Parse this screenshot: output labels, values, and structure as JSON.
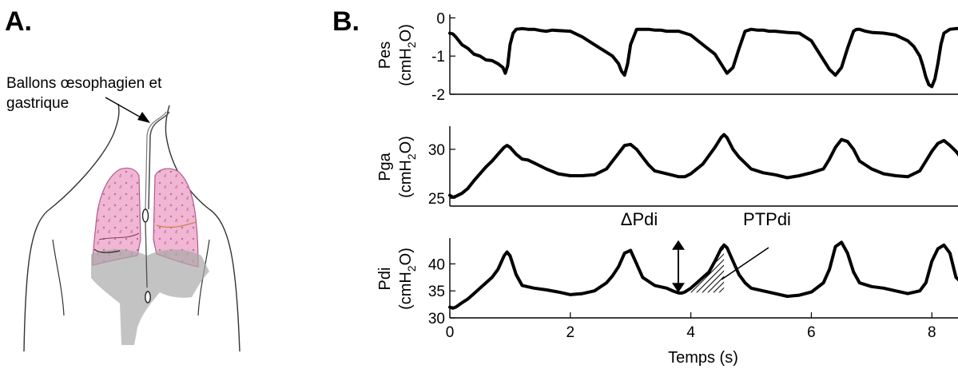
{
  "panels": {
    "a_label": "A.",
    "b_label": "B."
  },
  "illustration": {
    "balloon_label_line1": "Ballons œsophagien et",
    "balloon_label_line2": "gastrique",
    "colors": {
      "lung_fill": "#f0b6d4",
      "lung_stroke": "#b25a8a",
      "diaphragm": "#a9a9a9"
    }
  },
  "chart_data": [
    {
      "type": "line",
      "name": "Pes",
      "ylabel_main": "Pes",
      "ylabel_unit": "(cmH",
      "ylabel_sub": "2",
      "ylabel_tail": "O)",
      "yticks": [
        0,
        -1,
        -2
      ],
      "ylim": [
        -2,
        0.05
      ],
      "xlim": [
        0,
        8.5
      ],
      "x": [
        0.0,
        0.05,
        0.1,
        0.2,
        0.3,
        0.4,
        0.5,
        0.6,
        0.7,
        0.8,
        0.88,
        0.92,
        0.96,
        1.0,
        1.05,
        1.1,
        1.2,
        1.3,
        1.4,
        1.5,
        1.6,
        1.7,
        1.8,
        2.0,
        2.2,
        2.4,
        2.6,
        2.7,
        2.8,
        2.85,
        2.9,
        2.95,
        3.0,
        3.1,
        3.2,
        3.3,
        3.4,
        3.5,
        3.6,
        3.8,
        4.0,
        4.2,
        4.4,
        4.5,
        4.6,
        4.7,
        4.8,
        4.9,
        5.0,
        5.1,
        5.2,
        5.3,
        5.4,
        5.6,
        5.8,
        6.0,
        6.1,
        6.2,
        6.3,
        6.4,
        6.5,
        6.6,
        6.7,
        6.75,
        6.8,
        6.9,
        7.0,
        7.2,
        7.4,
        7.6,
        7.7,
        7.8,
        7.85,
        7.9,
        7.95,
        8.0,
        8.05,
        8.1,
        8.15,
        8.2,
        8.3,
        8.4,
        8.5
      ],
      "y": [
        -0.4,
        -0.42,
        -0.5,
        -0.7,
        -0.8,
        -0.95,
        -1.0,
        -1.1,
        -1.12,
        -1.2,
        -1.3,
        -1.45,
        -1.25,
        -0.7,
        -0.4,
        -0.3,
        -0.28,
        -0.3,
        -0.3,
        -0.33,
        -0.35,
        -0.32,
        -0.33,
        -0.35,
        -0.5,
        -0.7,
        -0.9,
        -1.0,
        -1.2,
        -1.4,
        -1.5,
        -1.2,
        -0.7,
        -0.3,
        -0.3,
        -0.3,
        -0.32,
        -0.32,
        -0.35,
        -0.35,
        -0.45,
        -0.7,
        -0.95,
        -1.2,
        -1.45,
        -1.3,
        -0.8,
        -0.35,
        -0.3,
        -0.32,
        -0.32,
        -0.35,
        -0.35,
        -0.38,
        -0.4,
        -0.6,
        -0.85,
        -1.1,
        -1.35,
        -1.5,
        -1.3,
        -0.8,
        -0.35,
        -0.3,
        -0.3,
        -0.35,
        -0.38,
        -0.4,
        -0.45,
        -0.6,
        -0.75,
        -1.0,
        -1.25,
        -1.55,
        -1.75,
        -1.8,
        -1.6,
        -1.2,
        -0.7,
        -0.4,
        -0.3,
        -0.28,
        -0.28
      ]
    },
    {
      "type": "line",
      "name": "Pga",
      "ylabel_main": "Pga",
      "ylabel_unit": "(cmH",
      "ylabel_sub": "2",
      "ylabel_tail": "O)",
      "yticks": [
        30,
        25
      ],
      "ylim": [
        24.2,
        32.2
      ],
      "xlim": [
        0,
        8.5
      ],
      "x": [
        0.0,
        0.05,
        0.1,
        0.2,
        0.3,
        0.4,
        0.5,
        0.6,
        0.7,
        0.8,
        0.9,
        0.95,
        1.0,
        1.1,
        1.2,
        1.3,
        1.4,
        1.6,
        1.8,
        2.0,
        2.2,
        2.4,
        2.6,
        2.7,
        2.8,
        2.9,
        3.0,
        3.1,
        3.2,
        3.3,
        3.4,
        3.6,
        3.8,
        3.9,
        4.0,
        4.2,
        4.4,
        4.5,
        4.55,
        4.6,
        4.7,
        4.8,
        4.9,
        5.0,
        5.2,
        5.4,
        5.6,
        5.8,
        6.0,
        6.2,
        6.3,
        6.4,
        6.5,
        6.6,
        6.7,
        6.8,
        7.0,
        7.2,
        7.4,
        7.6,
        7.8,
        7.9,
        8.0,
        8.1,
        8.2,
        8.3,
        8.4,
        8.5
      ],
      "y": [
        25.3,
        25.1,
        25.2,
        25.5,
        26.0,
        26.8,
        27.5,
        28.2,
        28.8,
        29.5,
        30.2,
        30.4,
        30.2,
        29.5,
        29.0,
        28.9,
        28.6,
        28.0,
        27.5,
        27.3,
        27.3,
        27.4,
        28.0,
        28.8,
        29.6,
        30.4,
        30.5,
        30.0,
        29.2,
        28.4,
        27.8,
        27.5,
        27.2,
        27.2,
        27.5,
        28.5,
        30.2,
        31.2,
        31.5,
        31.2,
        30.0,
        29.2,
        28.6,
        28.0,
        27.6,
        27.4,
        27.1,
        27.3,
        27.6,
        28.0,
        29.0,
        30.2,
        31.0,
        30.8,
        30.0,
        28.8,
        28.0,
        27.5,
        27.3,
        27.2,
        27.8,
        28.8,
        29.8,
        30.6,
        30.9,
        30.4,
        29.8,
        29.0
      ]
    },
    {
      "type": "line",
      "name": "Pdi",
      "ylabel_main": "Pdi",
      "ylabel_unit": "(cmH",
      "ylabel_sub": "2",
      "ylabel_tail": "O)",
      "yticks": [
        40,
        35,
        30
      ],
      "ylim": [
        30,
        44.5
      ],
      "xlim": [
        0,
        8.5
      ],
      "xticks": [
        0,
        2,
        4,
        6,
        8
      ],
      "xlabel": "Temps (s)",
      "x": [
        0.0,
        0.05,
        0.1,
        0.2,
        0.3,
        0.4,
        0.5,
        0.6,
        0.7,
        0.8,
        0.9,
        0.95,
        1.0,
        1.1,
        1.2,
        1.4,
        1.6,
        1.8,
        2.0,
        2.2,
        2.4,
        2.6,
        2.7,
        2.8,
        2.9,
        3.0,
        3.1,
        3.2,
        3.4,
        3.6,
        3.7,
        3.8,
        3.85,
        3.9,
        4.0,
        4.1,
        4.2,
        4.3,
        4.4,
        4.5,
        4.55,
        4.6,
        4.7,
        4.8,
        4.9,
        5.0,
        5.2,
        5.4,
        5.6,
        5.8,
        6.0,
        6.2,
        6.3,
        6.4,
        6.5,
        6.6,
        6.7,
        6.8,
        7.0,
        7.2,
        7.4,
        7.6,
        7.8,
        7.9,
        8.0,
        8.1,
        8.2,
        8.3,
        8.4,
        8.5
      ],
      "y": [
        32.0,
        31.8,
        32.0,
        32.8,
        33.5,
        34.5,
        35.5,
        36.5,
        37.5,
        39.0,
        41.5,
        42.2,
        41.5,
        38.0,
        36.0,
        35.5,
        35.2,
        34.8,
        34.3,
        34.5,
        35.0,
        36.5,
        37.8,
        39.5,
        42.0,
        42.5,
        40.0,
        37.5,
        36.0,
        35.5,
        35.0,
        34.6,
        34.6,
        34.8,
        35.5,
        36.5,
        37.5,
        38.5,
        40.5,
        42.8,
        43.5,
        43.0,
        40.5,
        38.0,
        36.5,
        35.5,
        35.0,
        34.5,
        34.0,
        34.2,
        34.8,
        36.5,
        39.0,
        43.2,
        44.0,
        42.0,
        38.5,
        36.5,
        35.8,
        35.5,
        35.0,
        34.5,
        35.0,
        36.5,
        40.5,
        42.8,
        43.5,
        42.0,
        37.5,
        36.5
      ],
      "annotations": {
        "delta_label": "ΔPdi",
        "ptp_label": "PTPdi"
      },
      "ptp_range": [
        3.85,
        4.55
      ],
      "delta_range": [
        34.7,
        43.5
      ]
    }
  ]
}
